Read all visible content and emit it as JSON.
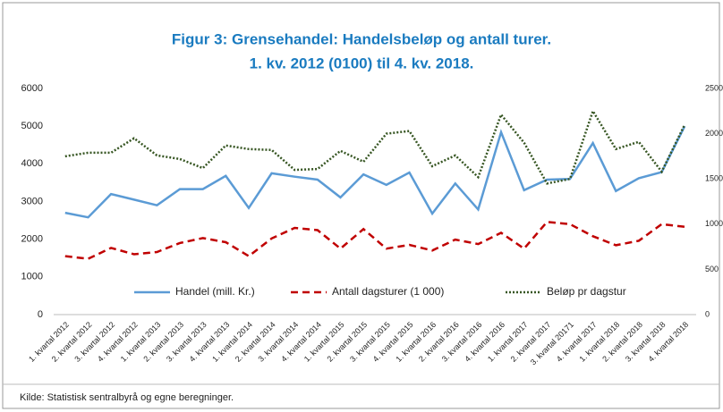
{
  "chart_data": {
    "type": "line",
    "title": "Figur 3: Grensehandel: Handelsbeløp og antall turer.",
    "subtitle": "1. kv. 2012 (0100) til 4. kv. 2018.",
    "source": "Kilde: Statistisk sentralbyrå og egne beregninger.",
    "categories": [
      "1. kvartal 2012",
      "2. kvartal 2012",
      "3. kvartal 2012",
      "4. kvartal 2012",
      "1. kvartal 2013",
      "2. kvartal 2013",
      "3. kvartal 2013",
      "4. kvartal 2013",
      "1. kvartal 2014",
      "2. kvartal 2014",
      "3. kvartal 2014",
      "4. kvartal 2014",
      "1. kvartal 2015",
      "2. kvartal 2015",
      "3. kvartal 2015",
      "4. kvartal 2015",
      "1. kvartal 2016",
      "2. kvartal 2016",
      "3. kvartal 2016",
      "4. kvartal 2016",
      "1. kvartal 2017",
      "2. kvartal 2017",
      "3. kvartal 20171",
      "4. kvartal 2017",
      "1. kvartal 2018",
      "2. kvartal 2018",
      "3. kvartal 2018",
      "4. kvartal 2018"
    ],
    "series": [
      {
        "name": "Handel (mill. Kr.)",
        "color": "#5b9bd5",
        "style": "solid",
        "values": [
          2700,
          2580,
          3200,
          3050,
          2900,
          3330,
          3330,
          3680,
          2830,
          3750,
          3660,
          3580,
          3110,
          3720,
          3440,
          3770,
          2680,
          3480,
          2790,
          4840,
          3300,
          3580,
          3600,
          4550,
          3280,
          3620,
          3780,
          5000
        ]
      },
      {
        "name": "Antall dagsturer (1 000)",
        "color": "#c00000",
        "style": "dashed",
        "values": [
          1550,
          1480,
          1770,
          1600,
          1660,
          1900,
          2030,
          1920,
          1550,
          2020,
          2300,
          2240,
          1750,
          2270,
          1750,
          1850,
          1700,
          1990,
          1870,
          2170,
          1750,
          2460,
          2400,
          2080,
          1840,
          1960,
          2400,
          2330
        ]
      },
      {
        "name": "Beløp pr dagstur",
        "color": "#375623",
        "style": "dotted",
        "axis": "y2",
        "values": [
          1750,
          1790,
          1790,
          1950,
          1760,
          1720,
          1620,
          1870,
          1830,
          1820,
          1600,
          1610,
          1810,
          1690,
          2000,
          2030,
          1640,
          1760,
          1520,
          2210,
          1900,
          1450,
          1500,
          2250,
          1830,
          1910,
          1580,
          2100
        ]
      }
    ],
    "ylim": [
      0,
      6000
    ],
    "yticks": [
      0,
      1000,
      2000,
      3000,
      4000,
      5000,
      6000
    ],
    "y2lim": [
      0,
      2500
    ],
    "y2ticks": [
      0,
      500,
      1000,
      1500,
      2000,
      2500
    ],
    "grid": false,
    "legend": "bottom"
  }
}
